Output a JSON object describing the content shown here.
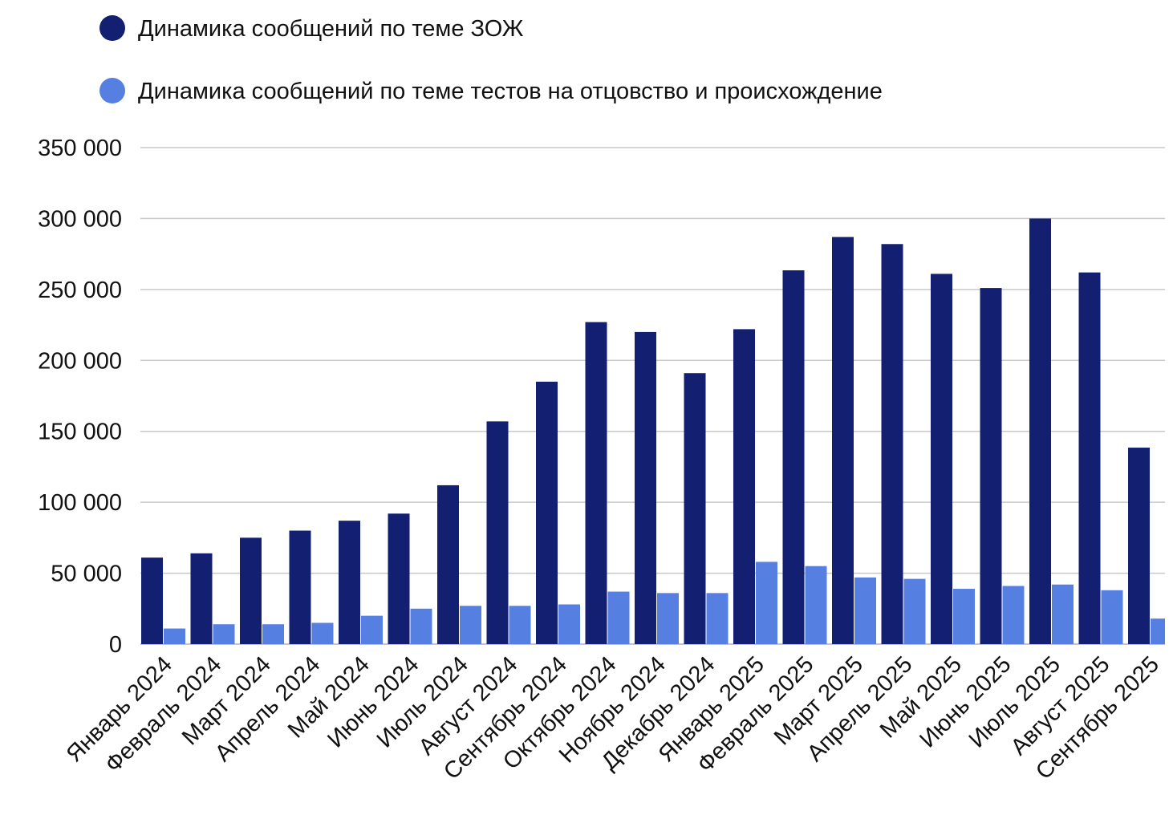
{
  "chart_data": {
    "type": "bar",
    "title": "",
    "xlabel": "",
    "ylabel": "",
    "ylim": [
      0,
      350000
    ],
    "yticks": [
      0,
      50000,
      100000,
      150000,
      200000,
      250000,
      300000,
      350000
    ],
    "ytick_labels": [
      "0",
      "50 000",
      "100 000",
      "150 000",
      "200 000",
      "250 000",
      "300 000",
      "350 000"
    ],
    "grid": true,
    "legend_position": "top-left",
    "categories": [
      "Январь 2024",
      "Февраль 2024",
      "Март 2024",
      "Апрель 2024",
      "Май 2024",
      "Июнь 2024",
      "Июль 2024",
      "Август 2024",
      "Сентябрь 2024",
      "Октябрь 2024",
      "Ноябрь 2024",
      "Декабрь 2024",
      "Январь 2025",
      "Февраль 2025",
      "Март 2025",
      "Апрель 2025",
      "Май 2025",
      "Июнь 2025",
      "Июль 2025",
      "Август 2025",
      "Сентябрь 2025"
    ],
    "series": [
      {
        "name": "Динамика сообщений по теме ЗОЖ",
        "color": "#131f70",
        "values": [
          61000,
          64000,
          75000,
          80000,
          87000,
          92000,
          112000,
          157000,
          185000,
          227000,
          220000,
          191000,
          222000,
          263500,
          287000,
          282000,
          261000,
          251000,
          300000,
          262000,
          138500
        ]
      },
      {
        "name": "Динамика сообщений по теме тестов на отцовство и происхождение",
        "color": "#5580e2",
        "values": [
          11000,
          14000,
          14000,
          15000,
          20000,
          25000,
          27000,
          27000,
          28000,
          37000,
          36000,
          36000,
          58000,
          55000,
          47000,
          46000,
          39000,
          41000,
          42000,
          38000,
          18000
        ]
      }
    ]
  }
}
